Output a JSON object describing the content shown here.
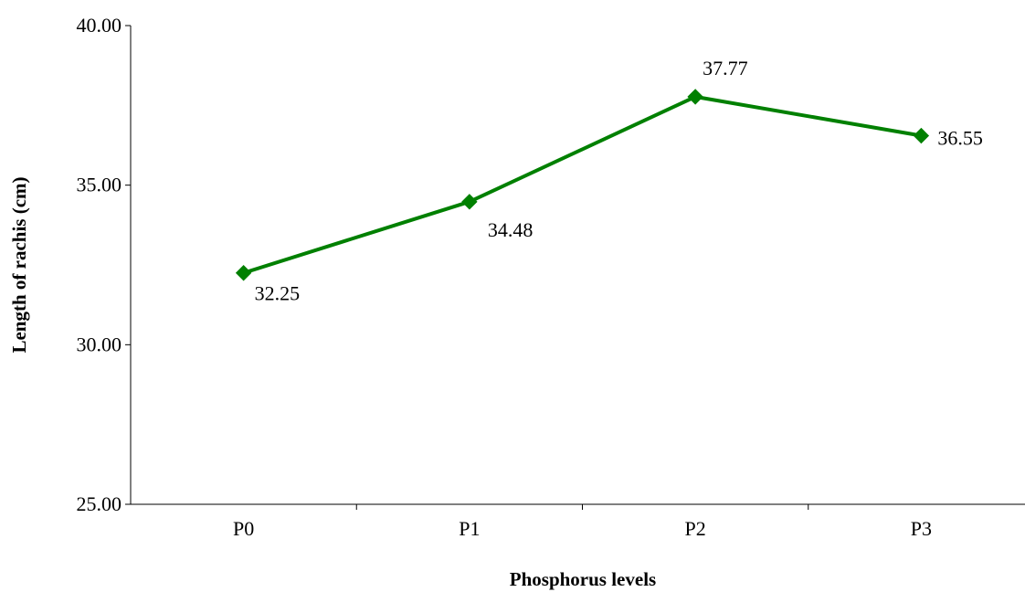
{
  "chart_data": {
    "type": "line",
    "title": "",
    "xlabel": "Phosphorus levels",
    "ylabel": "Length of rachis (cm)",
    "categories": [
      "P0",
      "P1",
      "P2",
      "P3"
    ],
    "series": [
      {
        "values": [
          32.25,
          34.48,
          37.77,
          36.55
        ],
        "data_labels": [
          "32.25",
          "34.48",
          "37.77",
          "36.55"
        ],
        "color": "#008000",
        "marker": "diamond"
      }
    ],
    "ylim": [
      25,
      40
    ],
    "y_ticks": [
      25,
      30,
      35,
      40
    ],
    "y_tick_labels": [
      "25.00",
      "30.00",
      "35.00",
      "40.00"
    ],
    "grid": false,
    "legend": "none"
  }
}
